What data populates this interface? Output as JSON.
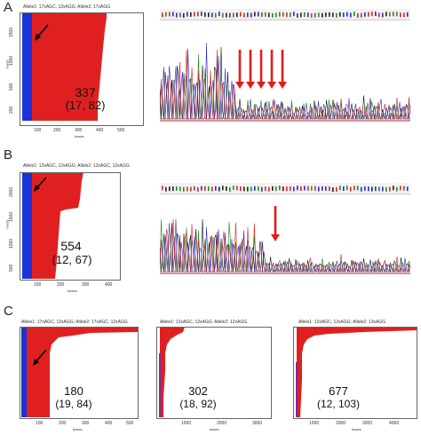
{
  "panels": {
    "A": {
      "letter": "A",
      "title": "Allele1: 17xAGC, 12xAGG; Allele2: 17xAGG",
      "count": "337",
      "range": "(17, 82)",
      "xticks": [
        "100",
        "200",
        "300",
        "400",
        "500"
      ],
      "yticks": [
        "1500",
        "1000",
        "500",
        "200"
      ],
      "xlabel": "bases",
      "ylabel": "reads",
      "arrow_count": 5
    },
    "B": {
      "letter": "B",
      "title": "Allele1: 12xAGC, 12xAGG; Allele2: 12xAGC, 12xAGG",
      "count": "554",
      "range": "(12, 67)",
      "xticks": [
        "100",
        "200",
        "300",
        "400"
      ],
      "yticks": [
        "2000",
        "1500",
        "1000",
        "500"
      ],
      "xlabel": "bases",
      "ylabel": "reads",
      "arrow_count": 1
    },
    "C": {
      "letter": "C",
      "plots": [
        {
          "title": "Allele1: 17xAGC, 12xAGG; Allele2: 17xAGC, 12xAGG",
          "count": "180",
          "range": "(19, 84)",
          "xticks": [
            "100",
            "200",
            "300",
            "400",
            "500"
          ],
          "xlabel": "bases"
        },
        {
          "title": "Allele1: 12xAGC, 12xAGG; Allele2: 12xAGG",
          "count": "302",
          "range": "(18, 92)",
          "xticks": [
            "1000",
            "2000",
            "3000"
          ],
          "xlabel": "bases"
        },
        {
          "title": "Allele1: 12xAGC, 12xAGG; Allele2: 13xAGG",
          "count": "677",
          "range": "(12, 103)",
          "xticks": [
            "1000",
            "2000",
            "3000",
            "4000"
          ],
          "xlabel": "bases"
        }
      ]
    }
  },
  "colors": {
    "reads_red": "#e02020",
    "reads_blue": "#1a33d6",
    "arrow_red": "#e31b1b"
  }
}
